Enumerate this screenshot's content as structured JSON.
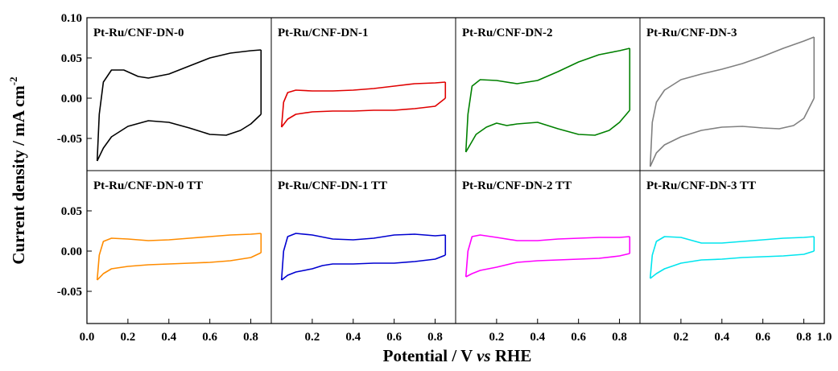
{
  "xlabel": {
    "main": "Potential / V ",
    "italic": "vs",
    "rest": " RHE"
  },
  "ylabel": {
    "main": "Current density / mA cm",
    "sup": "-2"
  },
  "chart_data": {
    "type": "line",
    "layout": "2 rows x 4 columns of cyclic voltammograms sharing axes",
    "xlim": [
      0.0,
      1.0
    ],
    "x_ticks": [
      "0.0",
      "0.2",
      "0.4",
      "0.6",
      "0.8",
      "0.2",
      "0.4",
      "0.6",
      "0.8",
      "0.2",
      "0.4",
      "0.6",
      "0.8",
      "0.2",
      "0.4",
      "0.6",
      "0.8",
      "1.0"
    ],
    "top_row": {
      "ylim": [
        -0.09,
        0.1
      ],
      "y_ticks": [
        "0.10",
        "0.05",
        "0.00",
        "-0.05"
      ]
    },
    "bottom_row": {
      "ylim": [
        -0.09,
        0.1
      ],
      "y_ticks": [
        "0.05",
        "0.00",
        "-0.05"
      ]
    },
    "panels": [
      {
        "label": "Pt-Ru/CNF-DN-0",
        "row": 0,
        "col": 0,
        "color": "#000000",
        "anodic": [
          [
            0.05,
            -0.078
          ],
          [
            0.06,
            -0.02
          ],
          [
            0.08,
            0.02
          ],
          [
            0.12,
            0.035
          ],
          [
            0.18,
            0.035
          ],
          [
            0.25,
            0.027
          ],
          [
            0.3,
            0.025
          ],
          [
            0.4,
            0.03
          ],
          [
            0.5,
            0.04
          ],
          [
            0.6,
            0.05
          ],
          [
            0.7,
            0.056
          ],
          [
            0.8,
            0.059
          ],
          [
            0.85,
            0.06
          ]
        ],
        "cathodic": [
          [
            0.85,
            -0.02
          ],
          [
            0.8,
            -0.032
          ],
          [
            0.75,
            -0.04
          ],
          [
            0.68,
            -0.046
          ],
          [
            0.6,
            -0.045
          ],
          [
            0.5,
            -0.037
          ],
          [
            0.4,
            -0.03
          ],
          [
            0.3,
            -0.028
          ],
          [
            0.2,
            -0.035
          ],
          [
            0.12,
            -0.048
          ],
          [
            0.08,
            -0.062
          ],
          [
            0.05,
            -0.078
          ]
        ]
      },
      {
        "label": "Pt-Ru/CNF-DN-1",
        "row": 0,
        "col": 1,
        "color": "#e00000",
        "anodic": [
          [
            0.05,
            -0.036
          ],
          [
            0.06,
            -0.005
          ],
          [
            0.08,
            0.007
          ],
          [
            0.12,
            0.01
          ],
          [
            0.2,
            0.009
          ],
          [
            0.3,
            0.009
          ],
          [
            0.4,
            0.01
          ],
          [
            0.5,
            0.012
          ],
          [
            0.6,
            0.015
          ],
          [
            0.7,
            0.018
          ],
          [
            0.8,
            0.019
          ],
          [
            0.85,
            0.02
          ]
        ],
        "cathodic": [
          [
            0.85,
            0.0
          ],
          [
            0.8,
            -0.01
          ],
          [
            0.7,
            -0.013
          ],
          [
            0.6,
            -0.015
          ],
          [
            0.5,
            -0.015
          ],
          [
            0.4,
            -0.016
          ],
          [
            0.3,
            -0.016
          ],
          [
            0.2,
            -0.017
          ],
          [
            0.12,
            -0.02
          ],
          [
            0.08,
            -0.026
          ],
          [
            0.05,
            -0.036
          ]
        ]
      },
      {
        "label": "Pt-Ru/CNF-DN-2",
        "row": 0,
        "col": 2,
        "color": "#008000",
        "anodic": [
          [
            0.05,
            -0.067
          ],
          [
            0.06,
            -0.02
          ],
          [
            0.08,
            0.015
          ],
          [
            0.12,
            0.023
          ],
          [
            0.2,
            0.022
          ],
          [
            0.3,
            0.018
          ],
          [
            0.4,
            0.022
          ],
          [
            0.5,
            0.033
          ],
          [
            0.6,
            0.045
          ],
          [
            0.7,
            0.054
          ],
          [
            0.8,
            0.059
          ],
          [
            0.85,
            0.062
          ]
        ],
        "cathodic": [
          [
            0.85,
            -0.015
          ],
          [
            0.8,
            -0.03
          ],
          [
            0.75,
            -0.04
          ],
          [
            0.68,
            -0.046
          ],
          [
            0.6,
            -0.045
          ],
          [
            0.5,
            -0.038
          ],
          [
            0.4,
            -0.03
          ],
          [
            0.3,
            -0.032
          ],
          [
            0.25,
            -0.034
          ],
          [
            0.2,
            -0.031
          ],
          [
            0.15,
            -0.036
          ],
          [
            0.1,
            -0.045
          ],
          [
            0.05,
            -0.067
          ]
        ]
      },
      {
        "label": "Pt-Ru/CNF-DN-3",
        "row": 0,
        "col": 3,
        "color": "#808080",
        "anodic": [
          [
            0.05,
            -0.085
          ],
          [
            0.06,
            -0.03
          ],
          [
            0.08,
            -0.005
          ],
          [
            0.12,
            0.01
          ],
          [
            0.2,
            0.023
          ],
          [
            0.3,
            0.03
          ],
          [
            0.4,
            0.036
          ],
          [
            0.5,
            0.043
          ],
          [
            0.6,
            0.052
          ],
          [
            0.7,
            0.062
          ],
          [
            0.8,
            0.071
          ],
          [
            0.85,
            0.076
          ]
        ],
        "cathodic": [
          [
            0.85,
            0.0
          ],
          [
            0.8,
            -0.025
          ],
          [
            0.75,
            -0.034
          ],
          [
            0.68,
            -0.038
          ],
          [
            0.6,
            -0.037
          ],
          [
            0.5,
            -0.035
          ],
          [
            0.4,
            -0.036
          ],
          [
            0.3,
            -0.04
          ],
          [
            0.2,
            -0.048
          ],
          [
            0.12,
            -0.058
          ],
          [
            0.08,
            -0.068
          ],
          [
            0.05,
            -0.085
          ]
        ]
      },
      {
        "label": "Pt-Ru/CNF-DN-0 TT",
        "row": 1,
        "col": 0,
        "color": "#ff8c00",
        "anodic": [
          [
            0.05,
            -0.036
          ],
          [
            0.06,
            -0.005
          ],
          [
            0.08,
            0.012
          ],
          [
            0.12,
            0.016
          ],
          [
            0.2,
            0.015
          ],
          [
            0.3,
            0.013
          ],
          [
            0.4,
            0.014
          ],
          [
            0.5,
            0.016
          ],
          [
            0.6,
            0.018
          ],
          [
            0.7,
            0.02
          ],
          [
            0.8,
            0.021
          ],
          [
            0.85,
            0.022
          ]
        ],
        "cathodic": [
          [
            0.85,
            -0.002
          ],
          [
            0.8,
            -0.008
          ],
          [
            0.7,
            -0.012
          ],
          [
            0.6,
            -0.014
          ],
          [
            0.5,
            -0.015
          ],
          [
            0.4,
            -0.016
          ],
          [
            0.3,
            -0.017
          ],
          [
            0.2,
            -0.019
          ],
          [
            0.12,
            -0.022
          ],
          [
            0.08,
            -0.028
          ],
          [
            0.05,
            -0.036
          ]
        ]
      },
      {
        "label": "Pt-Ru/CNF-DN-1 TT",
        "row": 1,
        "col": 1,
        "color": "#0000d0",
        "anodic": [
          [
            0.05,
            -0.036
          ],
          [
            0.06,
            0.0
          ],
          [
            0.08,
            0.018
          ],
          [
            0.12,
            0.022
          ],
          [
            0.2,
            0.02
          ],
          [
            0.3,
            0.015
          ],
          [
            0.4,
            0.014
          ],
          [
            0.5,
            0.016
          ],
          [
            0.6,
            0.02
          ],
          [
            0.7,
            0.021
          ],
          [
            0.8,
            0.019
          ],
          [
            0.85,
            0.02
          ]
        ],
        "cathodic": [
          [
            0.85,
            -0.005
          ],
          [
            0.8,
            -0.01
          ],
          [
            0.7,
            -0.013
          ],
          [
            0.6,
            -0.015
          ],
          [
            0.5,
            -0.015
          ],
          [
            0.4,
            -0.016
          ],
          [
            0.3,
            -0.016
          ],
          [
            0.25,
            -0.018
          ],
          [
            0.2,
            -0.022
          ],
          [
            0.12,
            -0.026
          ],
          [
            0.08,
            -0.03
          ],
          [
            0.05,
            -0.036
          ]
        ]
      },
      {
        "label": "Pt-Ru/CNF-DN-2 TT",
        "row": 1,
        "col": 2,
        "color": "#ff00ff",
        "anodic": [
          [
            0.05,
            -0.032
          ],
          [
            0.06,
            0.0
          ],
          [
            0.08,
            0.018
          ],
          [
            0.12,
            0.02
          ],
          [
            0.2,
            0.017
          ],
          [
            0.3,
            0.013
          ],
          [
            0.4,
            0.013
          ],
          [
            0.5,
            0.015
          ],
          [
            0.6,
            0.016
          ],
          [
            0.7,
            0.017
          ],
          [
            0.8,
            0.017
          ],
          [
            0.85,
            0.018
          ]
        ],
        "cathodic": [
          [
            0.85,
            -0.003
          ],
          [
            0.8,
            -0.006
          ],
          [
            0.7,
            -0.009
          ],
          [
            0.6,
            -0.01
          ],
          [
            0.5,
            -0.011
          ],
          [
            0.4,
            -0.012
          ],
          [
            0.3,
            -0.014
          ],
          [
            0.2,
            -0.02
          ],
          [
            0.12,
            -0.024
          ],
          [
            0.08,
            -0.028
          ],
          [
            0.05,
            -0.032
          ]
        ]
      },
      {
        "label": "Pt-Ru/CNF-DN-3 TT",
        "row": 1,
        "col": 3,
        "color": "#00e5ee",
        "anodic": [
          [
            0.05,
            -0.034
          ],
          [
            0.06,
            -0.005
          ],
          [
            0.08,
            0.012
          ],
          [
            0.12,
            0.018
          ],
          [
            0.2,
            0.017
          ],
          [
            0.3,
            0.01
          ],
          [
            0.4,
            0.01
          ],
          [
            0.5,
            0.012
          ],
          [
            0.6,
            0.014
          ],
          [
            0.7,
            0.016
          ],
          [
            0.8,
            0.017
          ],
          [
            0.85,
            0.018
          ]
        ],
        "cathodic": [
          [
            0.85,
            0.0
          ],
          [
            0.8,
            -0.004
          ],
          [
            0.7,
            -0.006
          ],
          [
            0.6,
            -0.007
          ],
          [
            0.5,
            -0.008
          ],
          [
            0.4,
            -0.01
          ],
          [
            0.3,
            -0.011
          ],
          [
            0.2,
            -0.015
          ],
          [
            0.12,
            -0.022
          ],
          [
            0.08,
            -0.028
          ],
          [
            0.05,
            -0.034
          ]
        ]
      }
    ]
  }
}
